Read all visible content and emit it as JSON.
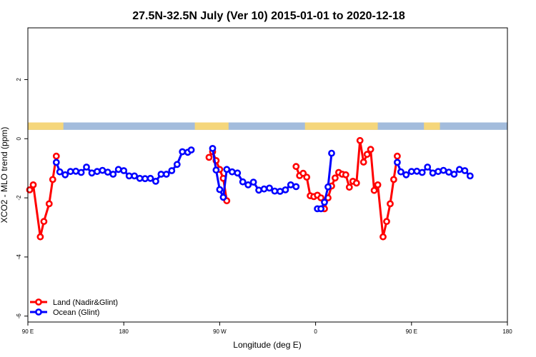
{
  "chart_data": {
    "type": "line",
    "title": "27.5N-32.5N July (Ver 10)   2015-01-01 to 2020-12-18",
    "xlabel": "Longitude (deg E)",
    "ylabel": "XCO2 - MLO trend (ppm)",
    "xlim": [
      -90,
      180
    ],
    "ylim": [
      -6.2,
      3.75
    ],
    "xticks": [
      {
        "v": -90,
        "label": "90 E"
      },
      {
        "v": -36,
        "label": "180"
      },
      {
        "v": 18,
        "label": "90 W"
      },
      {
        "v": 72,
        "label": "0"
      },
      {
        "v": 126,
        "label": "90 E"
      },
      {
        "v": 180,
        "label": "180"
      }
    ],
    "yticks": [
      {
        "v": -6,
        "label": "-6"
      },
      {
        "v": -4,
        "label": "-4"
      },
      {
        "v": -2,
        "label": "-2"
      },
      {
        "v": 0,
        "label": "0"
      },
      {
        "v": 2,
        "label": "2"
      }
    ],
    "surface_strip": {
      "y_top": 0.55,
      "y_bottom": 0.3,
      "ocean_color": "#a3bcdc",
      "land_color": "#f5d67b",
      "land_ranges": [
        [
          -90,
          -70
        ],
        [
          4,
          23
        ],
        [
          66,
          107
        ],
        [
          133,
          142
        ]
      ]
    },
    "legend": {
      "position": "bottom-left"
    },
    "series": [
      {
        "name": "Land (Nadir&Glint)",
        "color": "#ff0000",
        "segments": [
          [
            [
              -89,
              -1.73
            ],
            [
              -87,
              -1.56
            ],
            [
              -83,
              -3.32
            ],
            [
              -81,
              -2.8
            ],
            [
              -78,
              -2.2
            ],
            [
              -76,
              -1.38
            ],
            [
              -74,
              -0.59
            ]
          ],
          [
            [
              12,
              -0.63
            ],
            [
              14,
              -0.44
            ],
            [
              16,
              -0.74
            ],
            [
              18,
              -1.04
            ],
            [
              20,
              -1.34
            ],
            [
              22,
              -2.1
            ]
          ],
          [
            [
              61,
              -0.94
            ],
            [
              63,
              -1.25
            ],
            [
              65,
              -1.17
            ],
            [
              67,
              -1.3
            ],
            [
              69,
              -1.93
            ],
            [
              71,
              -1.96
            ],
            [
              73,
              -1.91
            ],
            [
              75,
              -2.0
            ],
            [
              77,
              -2.37
            ],
            [
              79,
              -2.0
            ],
            [
              81,
              -1.6
            ],
            [
              83,
              -1.33
            ],
            [
              85,
              -1.14
            ],
            [
              87,
              -1.2
            ],
            [
              89,
              -1.22
            ],
            [
              91,
              -1.64
            ],
            [
              93,
              -1.44
            ],
            [
              95,
              -1.5
            ],
            [
              97,
              -0.06
            ],
            [
              99,
              -0.79
            ],
            [
              101,
              -0.53
            ],
            [
              103,
              -0.36
            ],
            [
              105,
              -1.75
            ],
            [
              107,
              -1.56
            ],
            [
              110,
              -3.32
            ],
            [
              112,
              -2.8
            ],
            [
              114,
              -2.2
            ],
            [
              116,
              -1.38
            ],
            [
              118,
              -0.59
            ]
          ]
        ]
      },
      {
        "name": "Ocean (Glint)",
        "color": "#0000ff",
        "segments": [
          [
            [
              -74,
              -0.8
            ],
            [
              -72,
              -1.12
            ],
            [
              -69,
              -1.22
            ],
            [
              -66,
              -1.11
            ],
            [
              -63,
              -1.1
            ],
            [
              -60,
              -1.14
            ],
            [
              -57,
              -0.96
            ],
            [
              -54,
              -1.16
            ],
            [
              -51,
              -1.11
            ],
            [
              -48,
              -1.07
            ],
            [
              -45,
              -1.13
            ],
            [
              -42,
              -1.2
            ],
            [
              -39,
              -1.04
            ],
            [
              -36,
              -1.08
            ],
            [
              -33,
              -1.26
            ],
            [
              -30,
              -1.26
            ],
            [
              -27,
              -1.34
            ],
            [
              -24,
              -1.35
            ],
            [
              -21,
              -1.34
            ],
            [
              -18,
              -1.44
            ],
            [
              -15,
              -1.2
            ],
            [
              -12,
              -1.2
            ],
            [
              -9,
              -1.08
            ],
            [
              -6,
              -0.87
            ],
            [
              -3,
              -0.44
            ],
            [
              0,
              -0.46
            ],
            [
              2,
              -0.38
            ]
          ],
          [
            [
              14,
              -0.33
            ],
            [
              16,
              -1.06
            ],
            [
              18,
              -1.72
            ],
            [
              20,
              -1.98
            ],
            [
              22,
              -1.04
            ],
            [
              25,
              -1.12
            ],
            [
              28,
              -1.16
            ],
            [
              31,
              -1.46
            ],
            [
              34,
              -1.56
            ],
            [
              37,
              -1.47
            ],
            [
              40,
              -1.74
            ],
            [
              43,
              -1.7
            ],
            [
              46,
              -1.67
            ],
            [
              49,
              -1.77
            ],
            [
              52,
              -1.78
            ],
            [
              55,
              -1.73
            ],
            [
              58,
              -1.56
            ],
            [
              61,
              -1.62
            ]
          ],
          [
            [
              73,
              -2.37
            ],
            [
              75,
              -2.37
            ],
            [
              77,
              -2.15
            ],
            [
              79,
              -1.63
            ],
            [
              81,
              -0.49
            ]
          ],
          [
            [
              118,
              -0.8
            ],
            [
              120,
              -1.12
            ],
            [
              123,
              -1.22
            ],
            [
              126,
              -1.11
            ],
            [
              129,
              -1.1
            ],
            [
              132,
              -1.14
            ],
            [
              135,
              -0.96
            ],
            [
              138,
              -1.16
            ],
            [
              141,
              -1.11
            ],
            [
              144,
              -1.07
            ],
            [
              147,
              -1.13
            ],
            [
              150,
              -1.2
            ],
            [
              153,
              -1.04
            ],
            [
              156,
              -1.08
            ],
            [
              159,
              -1.26
            ]
          ]
        ]
      }
    ]
  }
}
